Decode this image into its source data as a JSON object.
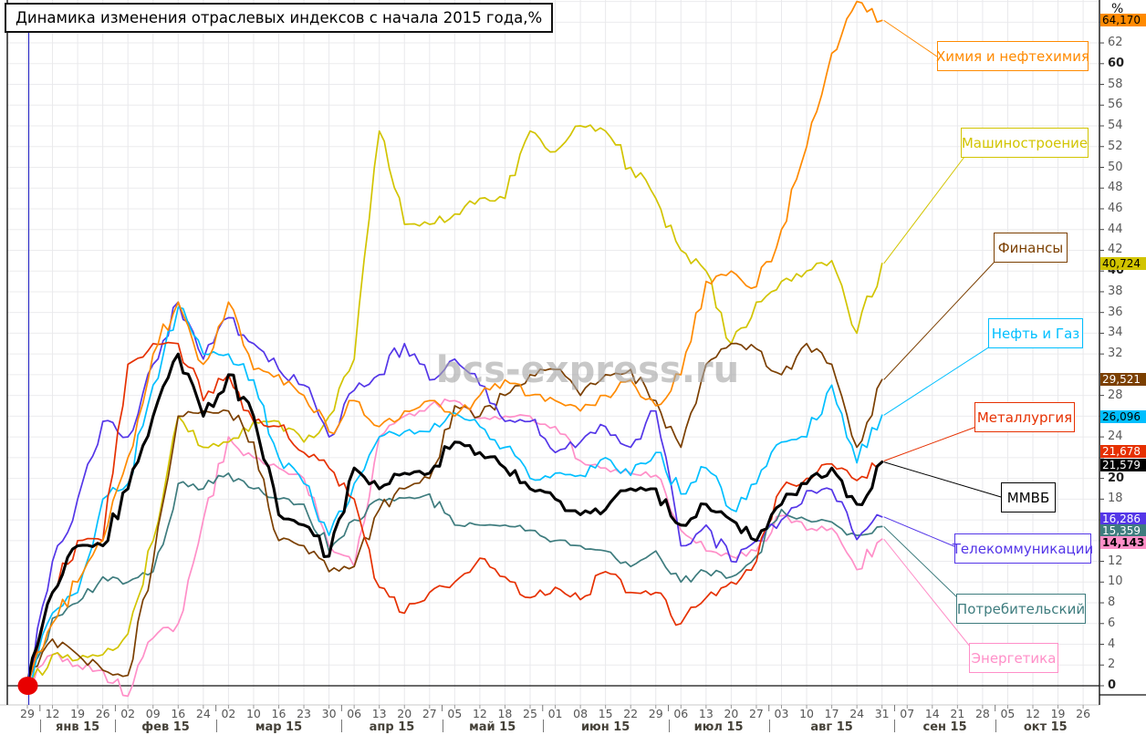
{
  "title": "Динамика изменения отраслевых индексов с начала 2015 года,%",
  "watermark": "bcs-express.ru",
  "start_marker": {
    "x_label": "29",
    "value": 0,
    "color": "#e80000"
  },
  "cursor_line_color": "#2f2fc8",
  "chart_data": {
    "type": "line",
    "title": "Динамика изменения отраслевых индексов с начала 2015 года,%",
    "ylabel": "%",
    "ylim": [
      0,
      66
    ],
    "y_step": 2,
    "y_bold_ticks": [
      0,
      20,
      40,
      60
    ],
    "y_hidden_ticks": [
      14,
      16,
      22,
      26,
      30,
      64
    ],
    "grid": true,
    "legend_position": "right-callouts",
    "x_labels": [
      "29",
      "12",
      "19",
      "26",
      "02",
      "09",
      "16",
      "24",
      "02",
      "10",
      "16",
      "23",
      "30",
      "06",
      "13",
      "20",
      "27",
      "05",
      "12",
      "18",
      "25",
      "01",
      "08",
      "15",
      "22",
      "29",
      "06",
      "13",
      "20",
      "27",
      "03",
      "10",
      "17",
      "24",
      "31",
      "07",
      "14",
      "21",
      "28",
      "05",
      "12",
      "19",
      "26"
    ],
    "months": [
      {
        "label": "янв 15",
        "ticks": [
          "12",
          "19",
          "26"
        ]
      },
      {
        "label": "фев 15",
        "ticks": [
          "02",
          "09",
          "16",
          "24"
        ]
      },
      {
        "label": "мар 15",
        "ticks": [
          "02",
          "10",
          "16",
          "23",
          "30"
        ]
      },
      {
        "label": "апр 15",
        "ticks": [
          "06",
          "13",
          "20",
          "27"
        ]
      },
      {
        "label": "май 15",
        "ticks": [
          "05",
          "12",
          "18",
          "25"
        ]
      },
      {
        "label": "июн 15",
        "ticks": [
          "01",
          "08",
          "15",
          "22",
          "29"
        ]
      },
      {
        "label": "июл 15",
        "ticks": [
          "06",
          "13",
          "20",
          "27"
        ]
      },
      {
        "label": "авг 15",
        "ticks": [
          "03",
          "10",
          "17",
          "24",
          "31"
        ]
      },
      {
        "label": "сен 15",
        "ticks": [
          "07",
          "14",
          "21",
          "28"
        ]
      },
      {
        "label": "окт 15",
        "ticks": [
          "05",
          "12",
          "19",
          "26"
        ]
      }
    ],
    "data_end_label": "31",
    "series": [
      {
        "id": "chem",
        "name": "Химия и нефтехимия",
        "color": "#FF8A00",
        "final": 64.17,
        "final_label": "64,170",
        "values": [
          0,
          6,
          10,
          14,
          22,
          32,
          37,
          31,
          37,
          30.5,
          30,
          28,
          24.5,
          27.5,
          25,
          26.5,
          27.5,
          26,
          28,
          29.5,
          28,
          27.5,
          26.5,
          28,
          29.5,
          27,
          30,
          39,
          40,
          38.5,
          44,
          52,
          61,
          66,
          64.17
        ]
      },
      {
        "id": "mash",
        "name": "Машиностроение",
        "color": "#D2C400",
        "final": 40.724,
        "final_label": "40,724",
        "values": [
          0,
          3,
          2.5,
          3,
          5,
          14,
          26,
          23,
          23.5,
          25.5,
          25.5,
          23.5,
          26,
          31.5,
          53.5,
          44.5,
          44.5,
          45.5,
          47,
          47,
          53.5,
          51.5,
          54,
          53.5,
          50,
          47,
          42,
          40,
          33,
          37,
          39,
          40,
          41,
          34,
          40.724
        ]
      },
      {
        "id": "fin",
        "name": "Финансы",
        "color": "#7B3F00",
        "final": 29.521,
        "final_label": "29,521",
        "values": [
          0,
          4.5,
          3,
          1.5,
          1,
          12,
          26,
          26.5,
          26.5,
          23.5,
          14,
          13.5,
          11,
          11.5,
          17,
          19,
          20,
          27,
          26,
          28,
          30,
          30.5,
          28,
          30,
          30.5,
          27.5,
          23,
          31,
          33,
          32.5,
          30,
          33,
          31,
          23,
          29.521
        ]
      },
      {
        "id": "oil",
        "name": "Нефть и Газ",
        "color": "#00BFFF",
        "final": 26.096,
        "final_label": "26,096",
        "values": [
          0,
          7,
          9,
          18,
          19.5,
          29,
          36.5,
          32,
          32,
          29.5,
          22,
          19.5,
          14.5,
          19.5,
          24,
          24.5,
          24.5,
          26.3,
          25,
          23,
          20,
          20.5,
          20.3,
          22,
          20.3,
          22.5,
          18.5,
          21,
          17,
          19.5,
          23.5,
          24,
          29,
          21.5,
          26.096
        ]
      },
      {
        "id": "metal",
        "name": "Металлургия",
        "color": "#E63000",
        "final": 21.678,
        "final_label": "21,678",
        "values": [
          0,
          9,
          14,
          14,
          31,
          33,
          33,
          27.5,
          30,
          25.5,
          25,
          22.5,
          21,
          18,
          9.5,
          7,
          9,
          10,
          12.3,
          10.5,
          8.5,
          9.5,
          8.3,
          11,
          9,
          9,
          6,
          8.5,
          10,
          12,
          19,
          20,
          21.4,
          19.8,
          21.678
        ]
      },
      {
        "id": "mmvb",
        "name": "ММВБ",
        "color": "#000000",
        "final": 21.579,
        "final_label": "21,579",
        "values": [
          0,
          9,
          13.5,
          13.5,
          19,
          26,
          32,
          26,
          30,
          26,
          16.5,
          15.5,
          12.5,
          21,
          19,
          20.5,
          20.5,
          23.5,
          22.5,
          21,
          19,
          18,
          16.5,
          17,
          19,
          19,
          15.5,
          17.5,
          16,
          14,
          17.5,
          19.5,
          21,
          17.5,
          21.579
        ]
      },
      {
        "id": "telecom",
        "name": "Телекоммуникации",
        "color": "#5436E8",
        "final": 16.286,
        "final_label": "16,286",
        "values": [
          0,
          12,
          18,
          25.5,
          24,
          31,
          37,
          31.5,
          35.5,
          33,
          30.5,
          29,
          24,
          28.5,
          30,
          33,
          29.5,
          31.5,
          29,
          25.5,
          25.5,
          22.5,
          23.5,
          25,
          23,
          26.5,
          13.5,
          15.5,
          12,
          14,
          16,
          18.8,
          18.9,
          14.1,
          16.286
        ]
      },
      {
        "id": "potreb",
        "name": "Потребительский",
        "color": "#3E7C7E",
        "final": 15.359,
        "final_label": "15,359",
        "values": [
          0,
          6.5,
          8,
          10.5,
          10,
          11,
          19.5,
          19,
          20.5,
          19,
          18,
          17.5,
          13,
          16,
          18,
          18.1,
          18.5,
          15.5,
          15.5,
          15.5,
          15,
          14,
          13.5,
          13,
          11.5,
          13,
          10,
          11,
          10.5,
          12.5,
          17,
          16,
          15.8,
          14.5,
          15.359
        ]
      },
      {
        "id": "energo",
        "name": "Энергетика",
        "color": "#FF8FC8",
        "final": 14.143,
        "final_label": "14,143",
        "values": [
          0,
          3,
          2,
          1.5,
          -1,
          4.6,
          6,
          16,
          24,
          22,
          21,
          20,
          13.5,
          11.5,
          24,
          26,
          27,
          27.5,
          25.8,
          26,
          26,
          25,
          21.7,
          21,
          20.5,
          20.3,
          15,
          13,
          12.5,
          13,
          16.4,
          15,
          15.2,
          11.2,
          14.143
        ]
      }
    ]
  }
}
